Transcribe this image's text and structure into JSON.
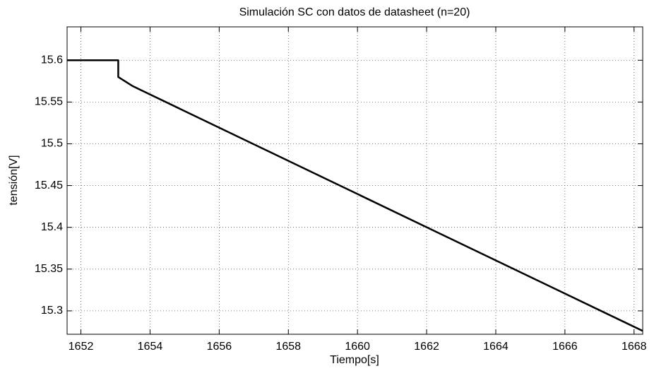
{
  "chart_data": {
    "type": "line",
    "title": "Simulación SC con datos de datasheet (n=20)",
    "x_label": "Tiempo[s]",
    "y_label": "tensión[V]",
    "x": [
      1651.6,
      1653.08,
      1653.08,
      1653.5,
      1668.25
    ],
    "series": [
      {
        "name": "tensión",
        "color": "#000000",
        "values": [
          15.6,
          15.6,
          15.58,
          15.569,
          15.276
        ]
      }
    ],
    "xlim": [
      1651.6,
      1668.25
    ],
    "ylim": [
      15.272,
      15.64
    ],
    "xticks": [
      1652,
      1654,
      1656,
      1658,
      1660,
      1662,
      1664,
      1666,
      1668
    ],
    "yticks": [
      15.3,
      15.35,
      15.4,
      15.45,
      15.5,
      15.55,
      15.6
    ],
    "grid": true
  }
}
